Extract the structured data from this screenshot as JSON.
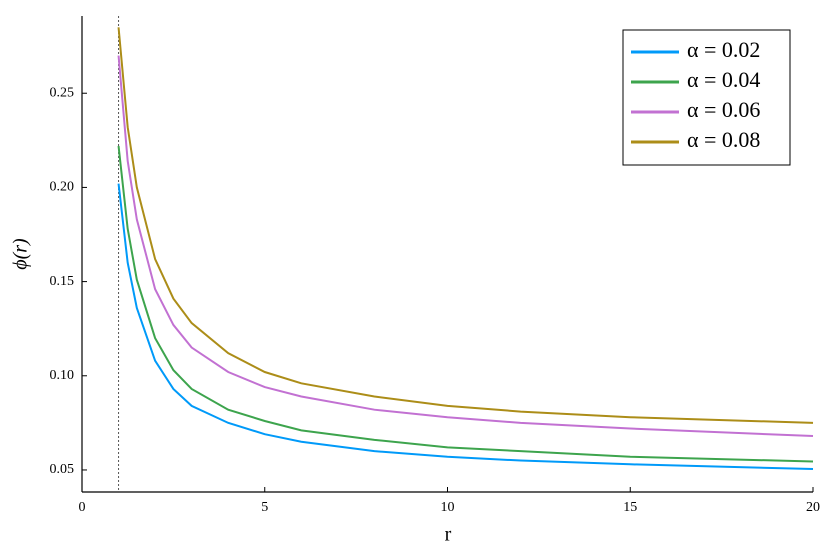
{
  "chart_data": {
    "type": "line",
    "xlabel": "r",
    "ylabel": "ϕ(r)",
    "x": [
      1,
      1.25,
      1.5,
      2,
      2.5,
      3,
      4,
      5,
      6,
      8,
      10,
      12,
      15,
      20
    ],
    "series": [
      {
        "name": "α = 0.02",
        "color": "#009af9",
        "values": [
          0.202,
          0.16,
          0.136,
          0.108,
          0.093,
          0.084,
          0.075,
          0.069,
          0.065,
          0.06,
          0.057,
          0.055,
          0.053,
          0.0505
        ]
      },
      {
        "name": "α = 0.04",
        "color": "#3da44d",
        "values": [
          0.222,
          0.178,
          0.151,
          0.12,
          0.103,
          0.093,
          0.082,
          0.076,
          0.071,
          0.066,
          0.062,
          0.06,
          0.057,
          0.0545
        ]
      },
      {
        "name": "α = 0.06",
        "color": "#c271d2",
        "values": [
          0.27,
          0.214,
          0.183,
          0.146,
          0.127,
          0.115,
          0.102,
          0.094,
          0.089,
          0.082,
          0.078,
          0.075,
          0.072,
          0.068
        ]
      },
      {
        "name": "α = 0.08",
        "color": "#ac8d18",
        "values": [
          0.285,
          0.232,
          0.2,
          0.162,
          0.141,
          0.128,
          0.112,
          0.102,
          0.096,
          0.089,
          0.084,
          0.081,
          0.078,
          0.075
        ]
      }
    ],
    "vlines": [
      1
    ],
    "xlim": [
      0,
      20
    ],
    "ylim": [
      0.0383,
      0.291
    ],
    "xticks": [
      0,
      5,
      10,
      15,
      20
    ],
    "yticks": [
      0.05,
      {
        "value": 0.1,
        "label": "0.10"
      },
      0.15,
      {
        "value": 0.2,
        "label": "0.20"
      },
      0.25
    ],
    "legend": "top-right",
    "grid": false
  }
}
